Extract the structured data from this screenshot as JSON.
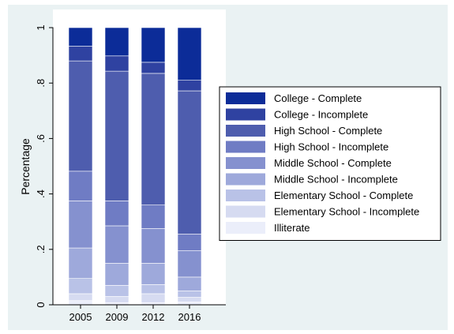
{
  "chart_data": {
    "type": "bar",
    "stacked": true,
    "ylabel": "Percentage",
    "xlabel": "",
    "ylim": [
      0,
      1
    ],
    "yticks": [
      {
        "value": 0,
        "label": "0"
      },
      {
        "value": 0.2,
        "label": ".2"
      },
      {
        "value": 0.4,
        "label": ".4"
      },
      {
        "value": 0.6,
        "label": ".6"
      },
      {
        "value": 0.8,
        "label": ".8"
      },
      {
        "value": 1,
        "label": "1"
      }
    ],
    "categories": [
      "2005",
      "2009",
      "2012",
      "2016"
    ],
    "grid": false,
    "legend_position": "right",
    "series": [
      {
        "name": "Illiterate",
        "color": "#ebeefa",
        "values": [
          0.015,
          0.008,
          0.008,
          0.01
        ]
      },
      {
        "name": "Elementary School - Incomplete",
        "color": "#d6dbf1",
        "values": [
          0.025,
          0.022,
          0.032,
          0.017
        ]
      },
      {
        "name": "Elementary School - Complete",
        "color": "#b9c2e7",
        "values": [
          0.055,
          0.04,
          0.033,
          0.023
        ]
      },
      {
        "name": "Middle School - Incomplete",
        "color": "#9ea9db",
        "values": [
          0.11,
          0.08,
          0.077,
          0.05
        ]
      },
      {
        "name": "Middle School - Complete",
        "color": "#8591cf",
        "values": [
          0.17,
          0.135,
          0.125,
          0.095
        ]
      },
      {
        "name": "High School - Incomplete",
        "color": "#6f7cc4",
        "values": [
          0.107,
          0.09,
          0.085,
          0.06
        ]
      },
      {
        "name": "High School - Complete",
        "color": "#4e5dae",
        "values": [
          0.398,
          0.468,
          0.475,
          0.517
        ]
      },
      {
        "name": "College - Incomplete",
        "color": "#2f42a1",
        "values": [
          0.053,
          0.055,
          0.04,
          0.038
        ]
      },
      {
        "name": "College - Complete",
        "color": "#0c2c98",
        "values": [
          0.067,
          0.102,
          0.125,
          0.19
        ]
      }
    ],
    "legend_order": [
      "College - Complete",
      "College - Incomplete",
      "High School - Complete",
      "High School - Incomplete",
      "Middle School - Complete",
      "Middle School - Incomplete",
      "Elementary School - Complete",
      "Elementary School - Incomplete",
      "Illiterate"
    ]
  }
}
